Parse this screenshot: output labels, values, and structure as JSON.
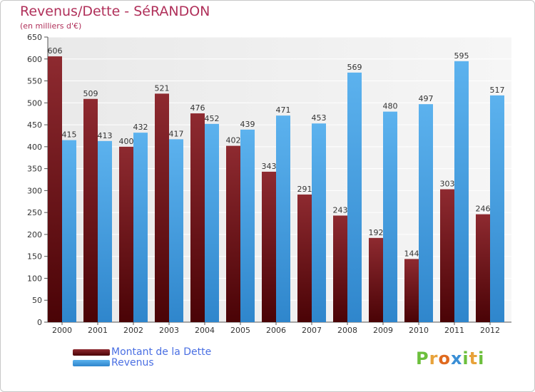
{
  "title": "Revenus/Dette - SéRANDON",
  "subtitle": "(en milliers d'€)",
  "chart_data": {
    "type": "bar",
    "categories": [
      "2000",
      "2001",
      "2002",
      "2003",
      "2004",
      "2005",
      "2006",
      "2007",
      "2008",
      "2009",
      "2010",
      "2011",
      "2012"
    ],
    "series": [
      {
        "name": "Montant de la Dette",
        "color": "#7a1a22",
        "values": [
          606,
          509,
          400,
          521,
          476,
          402,
          343,
          291,
          243,
          192,
          144,
          303,
          246
        ]
      },
      {
        "name": "Revenus",
        "color": "#4aa3e6",
        "values": [
          415,
          413,
          432,
          417,
          452,
          439,
          471,
          453,
          569,
          480,
          497,
          595,
          517
        ]
      }
    ],
    "ylim": [
      0,
      650
    ],
    "yticks": [
      "0",
      "50",
      "100",
      "150",
      "200",
      "250",
      "300",
      "350",
      "400",
      "450",
      "500",
      "550",
      "600",
      "650"
    ],
    "grid": true,
    "legend_position": "bottom-left"
  },
  "logo": {
    "letters": [
      "P",
      "r",
      "o",
      "x",
      "i",
      "t",
      "i"
    ],
    "colors": [
      "#6cbf3c",
      "#e8a23a",
      "#e06a1f",
      "#3a8fd6",
      "#6cbf3c",
      "#e8a23a",
      "#6cbf3c"
    ]
  }
}
